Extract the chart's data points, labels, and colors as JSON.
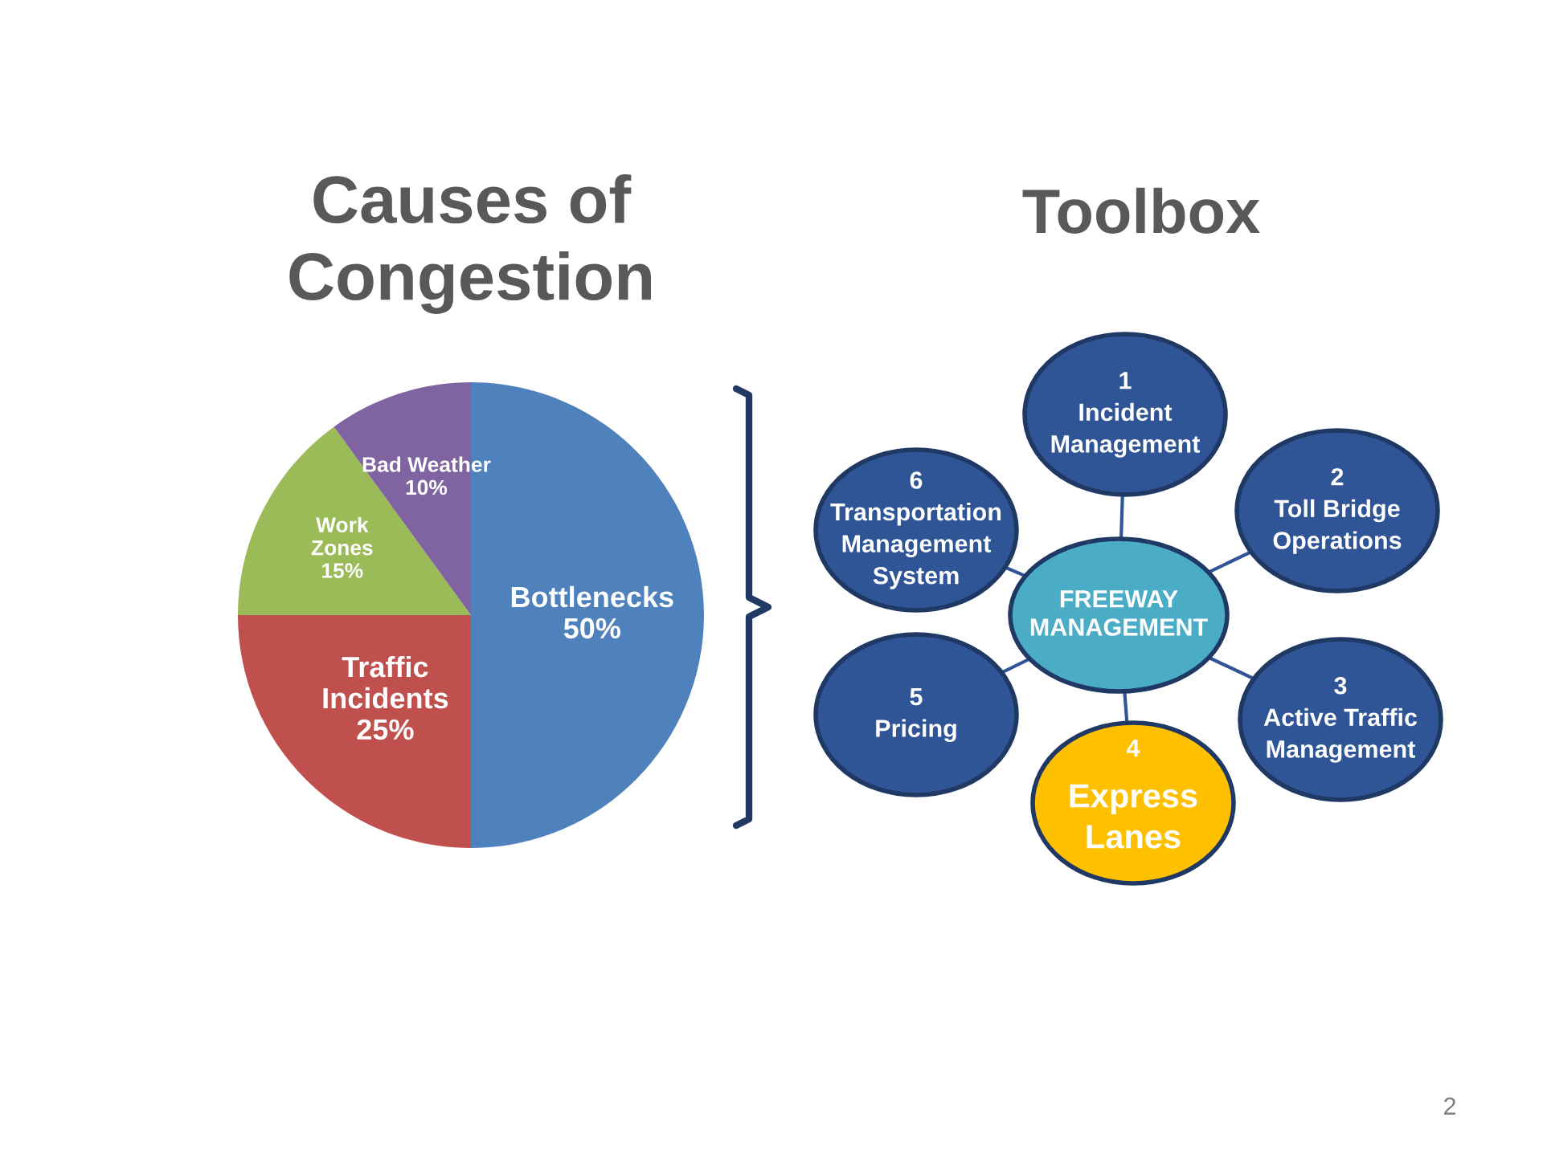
{
  "chart_data": [
    {
      "type": "pie",
      "title": "Causes of\nCongestion",
      "categories": [
        "Bottlenecks",
        "Traffic\nIncidents",
        "Work\nZones",
        "Bad Weather"
      ],
      "values": [
        50,
        25,
        15,
        10
      ],
      "value_labels": [
        "50%",
        "25%",
        "15%",
        "10%"
      ],
      "colors": [
        "#4f81bd",
        "#c0504d",
        "#9bbb59",
        "#8064a2"
      ],
      "annotations": [
        "2"
      ]
    },
    {
      "type": "other",
      "title": "Toolbox",
      "annotations": [
        "FREEWAY\nMANAGEMENT",
        "1\nIncident\nManagement",
        "2\nToll Bridge\nOperations",
        "3\nActive Traffic\nManagement",
        "4\nExpress\nLanes",
        "5\nPricing",
        "6\nTransportation\nManagement\nSystem"
      ],
      "colors": [
        "#4bacc6",
        "#2f5597",
        "#2f5597",
        "#2f5597",
        "#ffc000",
        "#2f5597",
        "#2f5597"
      ]
    }
  ]
}
